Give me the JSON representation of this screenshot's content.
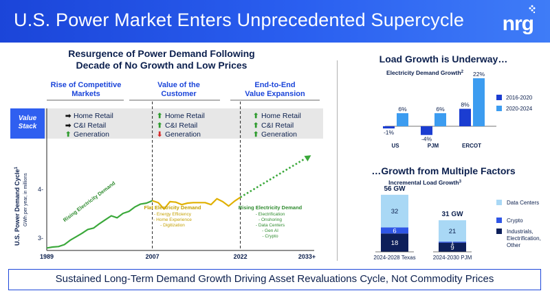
{
  "header": {
    "title": "U.S. Power Market Enters Unprecedented Supercycle",
    "logo": "nrg"
  },
  "left": {
    "title_line1": "Resurgence of Power Demand Following",
    "title_line2": "Decade of No Growth and Low Prices",
    "columns": [
      {
        "head1": "Rise of Competitive",
        "head2": "Markets",
        "items": [
          {
            "arrow": "right",
            "label": "Home Retail"
          },
          {
            "arrow": "right",
            "label": "C&I Retail"
          },
          {
            "arrow": "up",
            "label": "Generation"
          }
        ]
      },
      {
        "head1": "Value of the",
        "head2": "Customer",
        "items": [
          {
            "arrow": "up",
            "label": "Home Retail"
          },
          {
            "arrow": "up",
            "label": "C&I Retail"
          },
          {
            "arrow": "down",
            "label": "Generation"
          }
        ]
      },
      {
        "head1": "End-to-End",
        "head2": "Value Expansion",
        "items": [
          {
            "arrow": "up",
            "label": "Home Retail"
          },
          {
            "arrow": "up",
            "label": "C&I Retail"
          },
          {
            "arrow": "up",
            "label": "Generation"
          }
        ]
      }
    ],
    "value_stack_line1": "Value",
    "value_stack_line2": "Stack",
    "annotations": {
      "rising": "Rising Electricity Demand",
      "flat_title": "Flat Electricity Demand",
      "flat_items": [
        "- Energy Efficiency",
        "- Home Experience",
        "- Digitization"
      ],
      "rising2_title": "Rising Electricity Demand",
      "rising2_items": [
        "- Electrification",
        "- Onshoring",
        "- Data Centers",
        "- Gen AI",
        "- Crypto"
      ]
    }
  },
  "chart_data": [
    {
      "type": "line",
      "ylabel": "U.S. Power Demand Cycle",
      "ylabel_sup": "1",
      "ylabel_sub": "GWh per year, in millions",
      "ytick_labels": [
        "3-",
        "4-"
      ],
      "yticks": [
        3,
        4
      ],
      "ylim": [
        2.75,
        5.0
      ],
      "xtick_labels": [
        "1989",
        "2007",
        "2022",
        "2033+"
      ],
      "xticks": [
        1989,
        2007,
        2022,
        2033
      ],
      "xlim": [
        1989,
        2034
      ],
      "series": [
        {
          "color": "#3aa83a",
          "x": [
            1989,
            1990,
            1991,
            1992,
            1993,
            1994,
            1995,
            1996,
            1997,
            1998,
            1999,
            2000,
            2001,
            2002,
            2003,
            2004,
            2005,
            2006,
            2007
          ],
          "values": [
            2.8,
            2.82,
            2.83,
            2.87,
            2.96,
            3.03,
            3.1,
            3.18,
            3.21,
            3.3,
            3.38,
            3.46,
            3.42,
            3.51,
            3.55,
            3.64,
            3.7,
            3.72,
            3.77
          ]
        },
        {
          "color": "#e0b000",
          "x": [
            2007,
            2008,
            2009,
            2010,
            2011,
            2012,
            2013,
            2014,
            2015,
            2016,
            2017,
            2018,
            2019,
            2020,
            2021,
            2022
          ],
          "values": [
            3.77,
            3.73,
            3.6,
            3.75,
            3.74,
            3.69,
            3.72,
            3.73,
            3.73,
            3.73,
            3.69,
            3.81,
            3.75,
            3.66,
            3.76,
            3.84
          ]
        },
        {
          "color": "#3aa83a",
          "dashed": true,
          "x": [
            2022,
            2033
          ],
          "values": [
            3.84,
            4.63
          ]
        }
      ]
    },
    {
      "type": "bar",
      "title": "Electricity Demand Growth",
      "title_sup": "2",
      "categories": [
        "US",
        "PJM",
        "ERCOT"
      ],
      "ylim": [
        -5,
        22
      ],
      "series": [
        {
          "name": "2016-2020",
          "color": "#1b3dd1",
          "values": [
            -1,
            -4,
            8
          ],
          "labels": [
            "-1%",
            "-4%",
            "8%"
          ]
        },
        {
          "name": "2020-2024",
          "color": "#3c9cf0",
          "values": [
            6,
            6,
            22
          ],
          "labels": [
            "6%",
            "6%",
            "22%"
          ]
        }
      ]
    },
    {
      "type": "bar",
      "stacked": true,
      "title": "Incremental Load Growth",
      "title_sup": "3",
      "categories": [
        "2024-2028 Texas",
        "2024-2030 PJM"
      ],
      "totals": [
        "56 GW",
        "31 GW"
      ],
      "series": [
        {
          "name": "Industrials, Electrification, Other",
          "name_lines": [
            "Industrials,",
            "Electrification,",
            "Other"
          ],
          "color": "#0d1f5a",
          "values": [
            18,
            9
          ]
        },
        {
          "name": "Crypto",
          "color": "#2f56e6",
          "values": [
            6,
            1
          ]
        },
        {
          "name": "Data Centers",
          "color": "#a9d8f5",
          "values": [
            32,
            21
          ]
        }
      ]
    }
  ],
  "right": {
    "top_title": "Load Growth is Underway…",
    "bottom_title": "…Growth from Multiple Factors"
  },
  "footer": {
    "text": "Sustained Long-Term Demand Growth Driving Asset Revaluations Cycle, Not Commodity Prices"
  }
}
